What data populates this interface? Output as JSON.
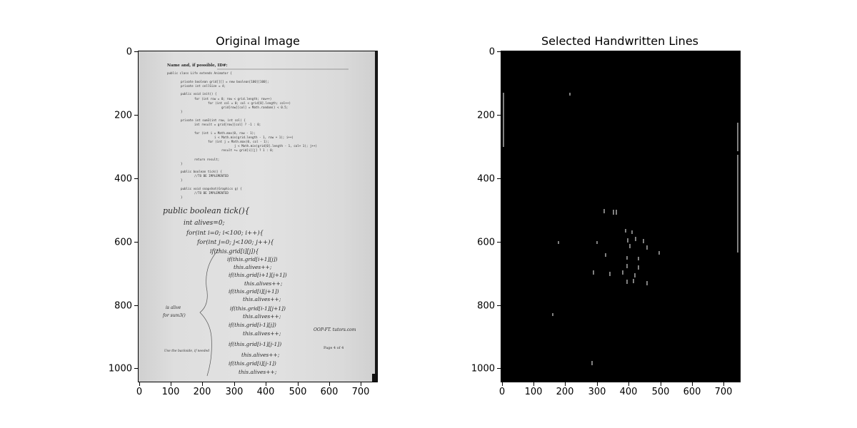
{
  "figure": {
    "panels": [
      {
        "title": "Original Image",
        "x_ticks": [
          "0",
          "100",
          "200",
          "300",
          "400",
          "500",
          "600",
          "700"
        ],
        "y_ticks": [
          "0",
          "200",
          "400",
          "600",
          "800",
          "1000"
        ]
      },
      {
        "title": "Selected Handwritten Lines",
        "x_ticks": [
          "0",
          "100",
          "200",
          "300",
          "400",
          "500",
          "600",
          "700"
        ],
        "y_ticks": [
          "0",
          "200",
          "400",
          "600",
          "800",
          "1000"
        ]
      }
    ]
  },
  "document": {
    "header": "Name and, if possible, ID#:",
    "code_lines": [
      "public class Life extends Animator {",
      "private boolean grid[][] = new boolean[100][100];",
      "private int cellSize = 4;",
      "public void init() {",
      "for (int row = 0; row < grid.length; row++)",
      "for (int col = 0; col < grid[0].length; col++)",
      "grid[row][col] = Math.random() < 0.5;",
      "}",
      "private int sum3(int row, int col) {",
      "int result = grid[row][col] ? -1 : 0;",
      "for (int i = Math.max(0, row - 1);",
      "i < Math.min(grid.length - 1, row + 1); i++)",
      "for (int j = Math.max(0, col - 1);",
      "j < Math.min(grid[0].length - 1, col+ 1); j++)",
      "result += grid[i][j] ? 1 : 0;",
      "return result;",
      "}",
      "public boolean tick() {",
      "//TO BE IMPLEMENTED",
      "}",
      "public void snapshot(Graphics g) {",
      "//TO BE IMPLEMENTED",
      "}"
    ],
    "handwritten_lines": [
      "public boolean tick(){",
      "int alives=0;",
      "for(int i=0; i<100; i++){",
      "for(int j=0; j<100; j++){",
      "if(this.grid[i][j]){",
      "if(this.grid[i+1][j])",
      "this.alives++;",
      "if(this.grid[i+1][j+1])",
      "this.alives++;",
      "if(this.grid[i][j+1])",
      "this.alives++;",
      "if(this.grid[i-1][j+1])",
      "this.alives++;",
      "if(this.grid[i-1][j])",
      "this.alives++;",
      "if(this.grid[i-1][j-1])",
      "this.alives++;",
      "if(this.grid[i][j-1])",
      "this.alives++;"
    ],
    "margin_note": [
      "is alive",
      "for sum3()"
    ],
    "side_note": "OOP-FT. tutors.com",
    "footer_left": "Use the backside, if needed",
    "footer_right": "Page 4 of 4"
  },
  "mask": {
    "background": "#000000",
    "stroke_color": "#ffffff"
  }
}
